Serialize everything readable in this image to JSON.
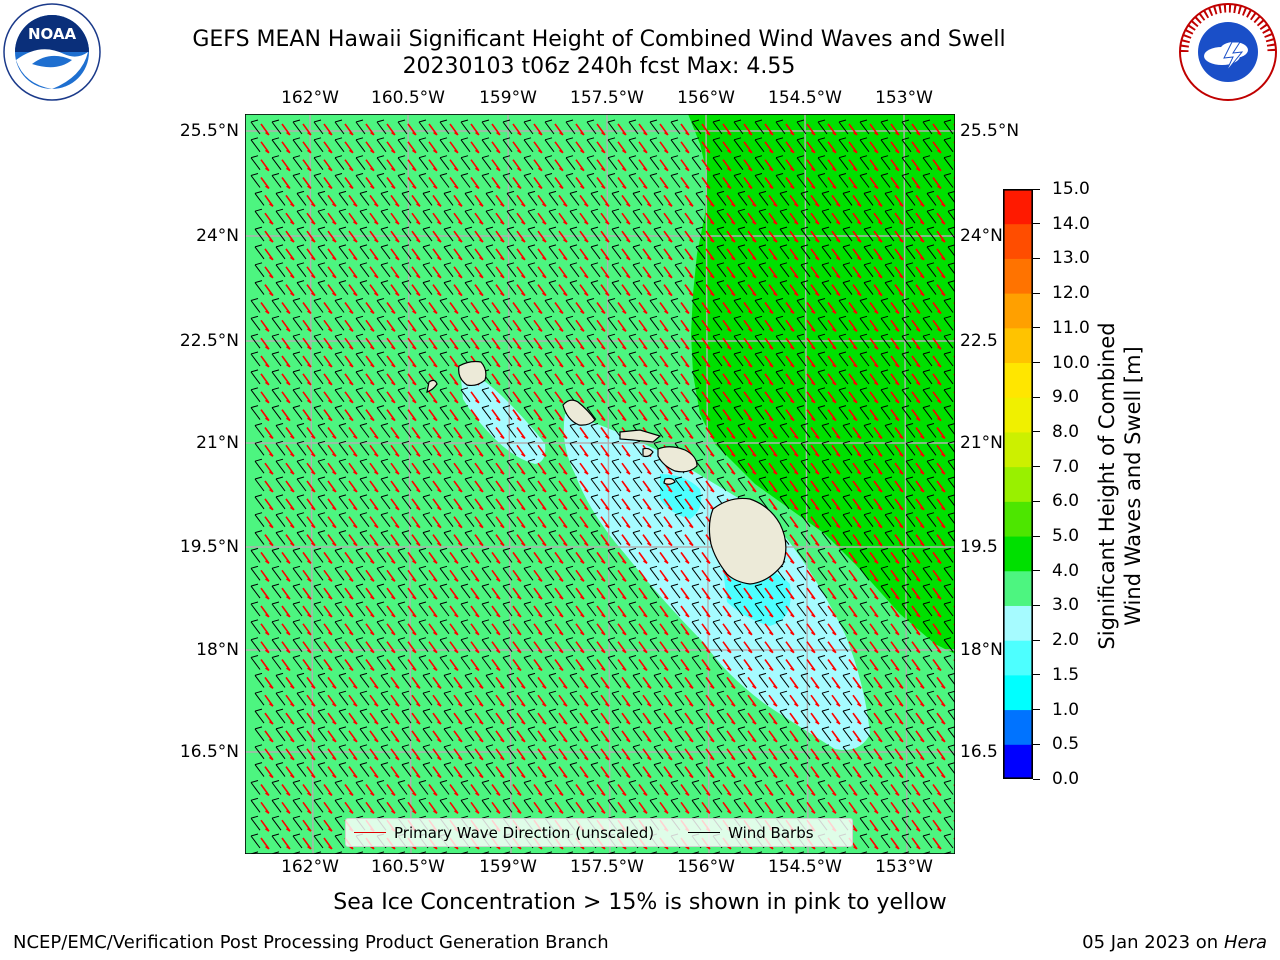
{
  "header": {
    "title_line1": "GEFS MEAN Hawaii Significant Height of Combined Wind Waves and Swell",
    "title_line2": "20230103 t06z 240h fcst   Max: 4.55"
  },
  "logos": {
    "left": "NOAA",
    "right": "NATIONAL WEATHER SERVICE"
  },
  "map": {
    "lon_labels": [
      "162°W",
      "160.5°W",
      "159°W",
      "157.5°W",
      "156°W",
      "154.5°W",
      "153°W"
    ],
    "lat_labels_left": [
      "25.5°N",
      "24°N",
      "22.5°N",
      "21°N",
      "19.5°N",
      "18°N",
      "16.5°N"
    ],
    "lat_labels_right": [
      "25.5°N",
      "24°N",
      "22.5",
      "21°N",
      "19.5",
      "18°N",
      "16.5"
    ],
    "lon_range": [
      -163,
      -152.7
    ],
    "lat_range": [
      15.2,
      25.8
    ],
    "islands": [
      "Niihau",
      "Kauai",
      "Oahu",
      "Molokai",
      "Lanai",
      "Maui",
      "Kahoolawe",
      "Hawaii"
    ],
    "field_colors": {
      "land": "#ecead8",
      "wave_3_4": "#4df580",
      "wave_4_5": "#00e000",
      "wave_2_3": "#a6fbff",
      "wave_15_2": "#4dffff"
    },
    "barb_color": "#000000",
    "arrow_color": "#ff0000"
  },
  "legend": {
    "wave_label": "Primary Wave Direction (unscaled)",
    "wave_color": "#e00000",
    "barb_label": "Wind Barbs",
    "barb_color": "#000000"
  },
  "colorbar": {
    "label_line1": "Significant Height of Combined",
    "label_line2": "Wind Waves and Swell [m]",
    "ticks": [
      "0.0",
      "0.5",
      "1.0",
      "1.5",
      "2.0",
      "3.0",
      "4.0",
      "5.0",
      "6.0",
      "7.0",
      "8.0",
      "9.0",
      "10.0",
      "11.0",
      "12.0",
      "13.0",
      "14.0",
      "15.0"
    ],
    "colors": [
      "#0000ff",
      "#0073ff",
      "#00ffff",
      "#4dffff",
      "#a6fbff",
      "#4df580",
      "#00e000",
      "#4de600",
      "#99f000",
      "#ccf000",
      "#f0f000",
      "#ffe600",
      "#ffc300",
      "#ffa000",
      "#ff7300",
      "#ff4d00",
      "#ff1a00",
      "#ff0000"
    ]
  },
  "footnote": "Sea Ice Concentration > 15% is shown in pink to yellow",
  "footer": {
    "credit": "NCEP/EMC/Verification Post Processing Product Generation Branch",
    "date": "05 Jan 2023 on",
    "host": "Hera"
  }
}
